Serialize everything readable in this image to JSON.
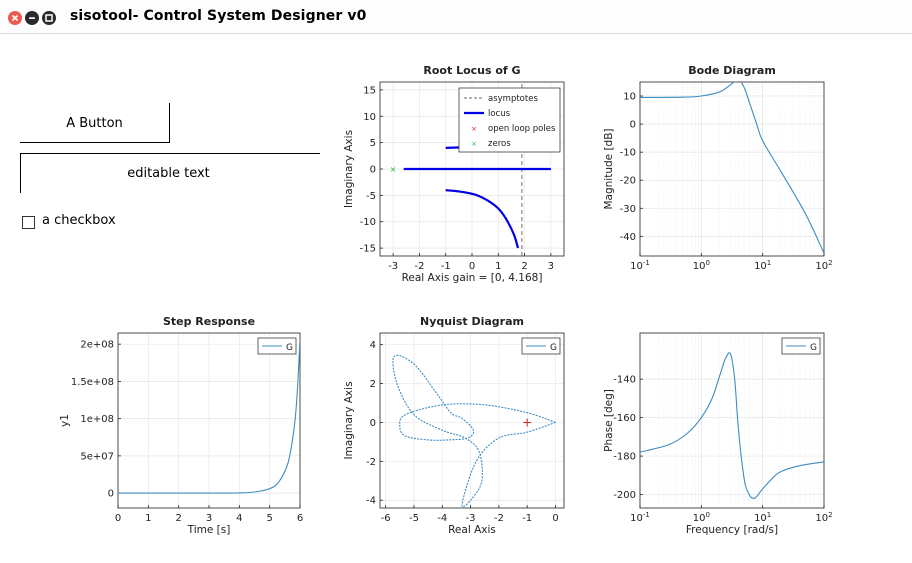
{
  "window": {
    "title": "sisotool- Control System Designer v0"
  },
  "controls": {
    "button_label": "A Button",
    "edit_text": "editable text",
    "checkbox_label": "a checkbox",
    "checkbox_checked": false
  },
  "colors": {
    "close": "#ef5a4f",
    "window_btn": "#2a2a2a",
    "trace": "#3c8dc0",
    "locus": "#0000e6",
    "asymptote": "#888888",
    "pole": "#e02020",
    "zero": "#20c040"
  },
  "chart_data": [
    {
      "type": "line",
      "title": "Root Locus of G",
      "xlabel": "Real Axis    gain = [0, 4.168]",
      "ylabel": "Imaginary Axis",
      "xlim": [
        -3.5,
        3.5
      ],
      "ylim": [
        -16.5,
        16.5
      ],
      "xticks": [
        -3,
        -2,
        -1,
        0,
        1,
        2,
        3
      ],
      "yticks": [
        -15,
        -10,
        -5,
        0,
        5,
        10,
        15
      ],
      "legend": [
        "asymptotes",
        "locus",
        "open loop poles",
        "zeros"
      ],
      "legend_position": "top-right",
      "series": [
        {
          "name": "asymptotes",
          "x": [
            1.9,
            1.9
          ],
          "y": [
            -16.5,
            16.5
          ]
        },
        {
          "name": "locus",
          "x": [
            -2.6,
            3.0
          ],
          "y": [
            0,
            0
          ]
        },
        {
          "name": "locus",
          "x": [
            -1.0,
            -0.6,
            -0.2,
            0.2,
            0.6,
            1.0,
            1.3,
            1.6,
            1.75
          ],
          "y": [
            -4.0,
            -4.2,
            -4.5,
            -5.0,
            -6.0,
            -7.5,
            -9.5,
            -12.5,
            -15.0
          ]
        },
        {
          "name": "locus",
          "x": [
            -1.0,
            -0.4,
            0.4
          ],
          "y": [
            4.0,
            4.1,
            4.3
          ]
        },
        {
          "name": "zeros",
          "x": [
            -3.0
          ],
          "y": [
            0
          ]
        }
      ]
    },
    {
      "type": "line",
      "title": "Bode Diagram",
      "xlabel": "",
      "ylabel": "Magnitude [dB]",
      "xlog": true,
      "xlim": [
        0.1,
        100
      ],
      "ylim": [
        -47,
        15
      ],
      "xticks": [
        "10^-1",
        "10^0",
        "10^1",
        "10^2"
      ],
      "yticks": [
        -40,
        -30,
        -20,
        -10,
        0,
        10
      ],
      "series": [
        {
          "x": [
            0.1,
            0.5,
            1,
            2,
            3,
            4,
            5,
            6,
            8,
            10,
            20,
            50,
            100
          ],
          "y": [
            9.5,
            9.6,
            10,
            11.5,
            14,
            16,
            13,
            8,
            0,
            -6,
            -17,
            -32,
            -46
          ]
        }
      ]
    },
    {
      "type": "line",
      "title": "Step Response",
      "xlabel": "Time [s]",
      "ylabel": "y1",
      "xlim": [
        0,
        6
      ],
      "ylim": [
        -20000000,
        215000000
      ],
      "xticks": [
        0,
        1,
        2,
        3,
        4,
        5,
        6
      ],
      "yticks": [
        "0",
        "5e+07",
        "1e+08",
        "1.5e+08",
        "2e+08"
      ],
      "legend": [
        "G"
      ],
      "legend_position": "top-right",
      "series": [
        {
          "name": "G",
          "x": [
            0,
            3,
            4,
            4.5,
            5,
            5.3,
            5.6,
            5.8,
            5.9,
            6.0
          ],
          "y": [
            0,
            0,
            300000,
            1500000,
            6000000,
            15000000,
            40000000,
            85000000,
            130000000,
            205000000
          ]
        }
      ]
    },
    {
      "type": "line",
      "title": "Nyquist Diagram",
      "xlabel": "Real Axis",
      "ylabel": "Imaginary Axis",
      "xlim": [
        -6.2,
        0.3
      ],
      "ylim": [
        -4.4,
        4.6
      ],
      "xticks": [
        -6,
        -5,
        -4,
        -3,
        -2,
        -1,
        0
      ],
      "yticks": [
        -4,
        -2,
        0,
        2,
        4
      ],
      "legend": [
        "G"
      ],
      "legend_position": "top-right",
      "critical_point": [
        -1,
        0
      ],
      "series": [
        {
          "name": "G",
          "x": [
            0,
            -1,
            -2.5,
            -4,
            -5.3,
            -5.5,
            -5.3,
            -4.5,
            -3.8,
            -3.1,
            -2.9,
            -3.3,
            -3.7,
            -4.2,
            -5.0,
            -5.7,
            -5.6,
            -5.0,
            -4.0,
            -3.2,
            -2.7,
            -2.6,
            -3.0,
            -3.3,
            -2.8,
            -2.0,
            -1.0,
            0
          ],
          "y": [
            0,
            0.5,
            0.9,
            0.9,
            0.4,
            -0.2,
            -0.7,
            -0.9,
            -0.9,
            -0.8,
            -0.4,
            0.2,
            0.5,
            1.5,
            3.0,
            3.4,
            2.0,
            0.4,
            -0.4,
            -0.8,
            -1.5,
            -3.0,
            -4.0,
            -4.2,
            -2.0,
            -0.8,
            -0.5,
            0
          ]
        }
      ]
    },
    {
      "type": "line",
      "title": "",
      "xlabel": "Frequency [rad/s]",
      "ylabel": "Phase [deg]",
      "xlog": true,
      "xlim": [
        0.1,
        100
      ],
      "ylim": [
        -207,
        -116
      ],
      "xticks": [
        "10^-1",
        "10^0",
        "10^1",
        "10^2"
      ],
      "yticks": [
        -200,
        -180,
        -160,
        -140
      ],
      "legend": [
        "G"
      ],
      "legend_position": "top-right",
      "series": [
        {
          "name": "G",
          "x": [
            0.1,
            0.3,
            0.6,
            1,
            1.5,
            2,
            2.5,
            3,
            3.5,
            4,
            5,
            6,
            7,
            8,
            10,
            15,
            20,
            40,
            100
          ],
          "y": [
            -178,
            -174,
            -168,
            -160,
            -150,
            -138,
            -129,
            -127,
            -140,
            -165,
            -192,
            -200,
            -202,
            -201,
            -197,
            -191,
            -188,
            -185,
            -183
          ]
        }
      ]
    }
  ]
}
